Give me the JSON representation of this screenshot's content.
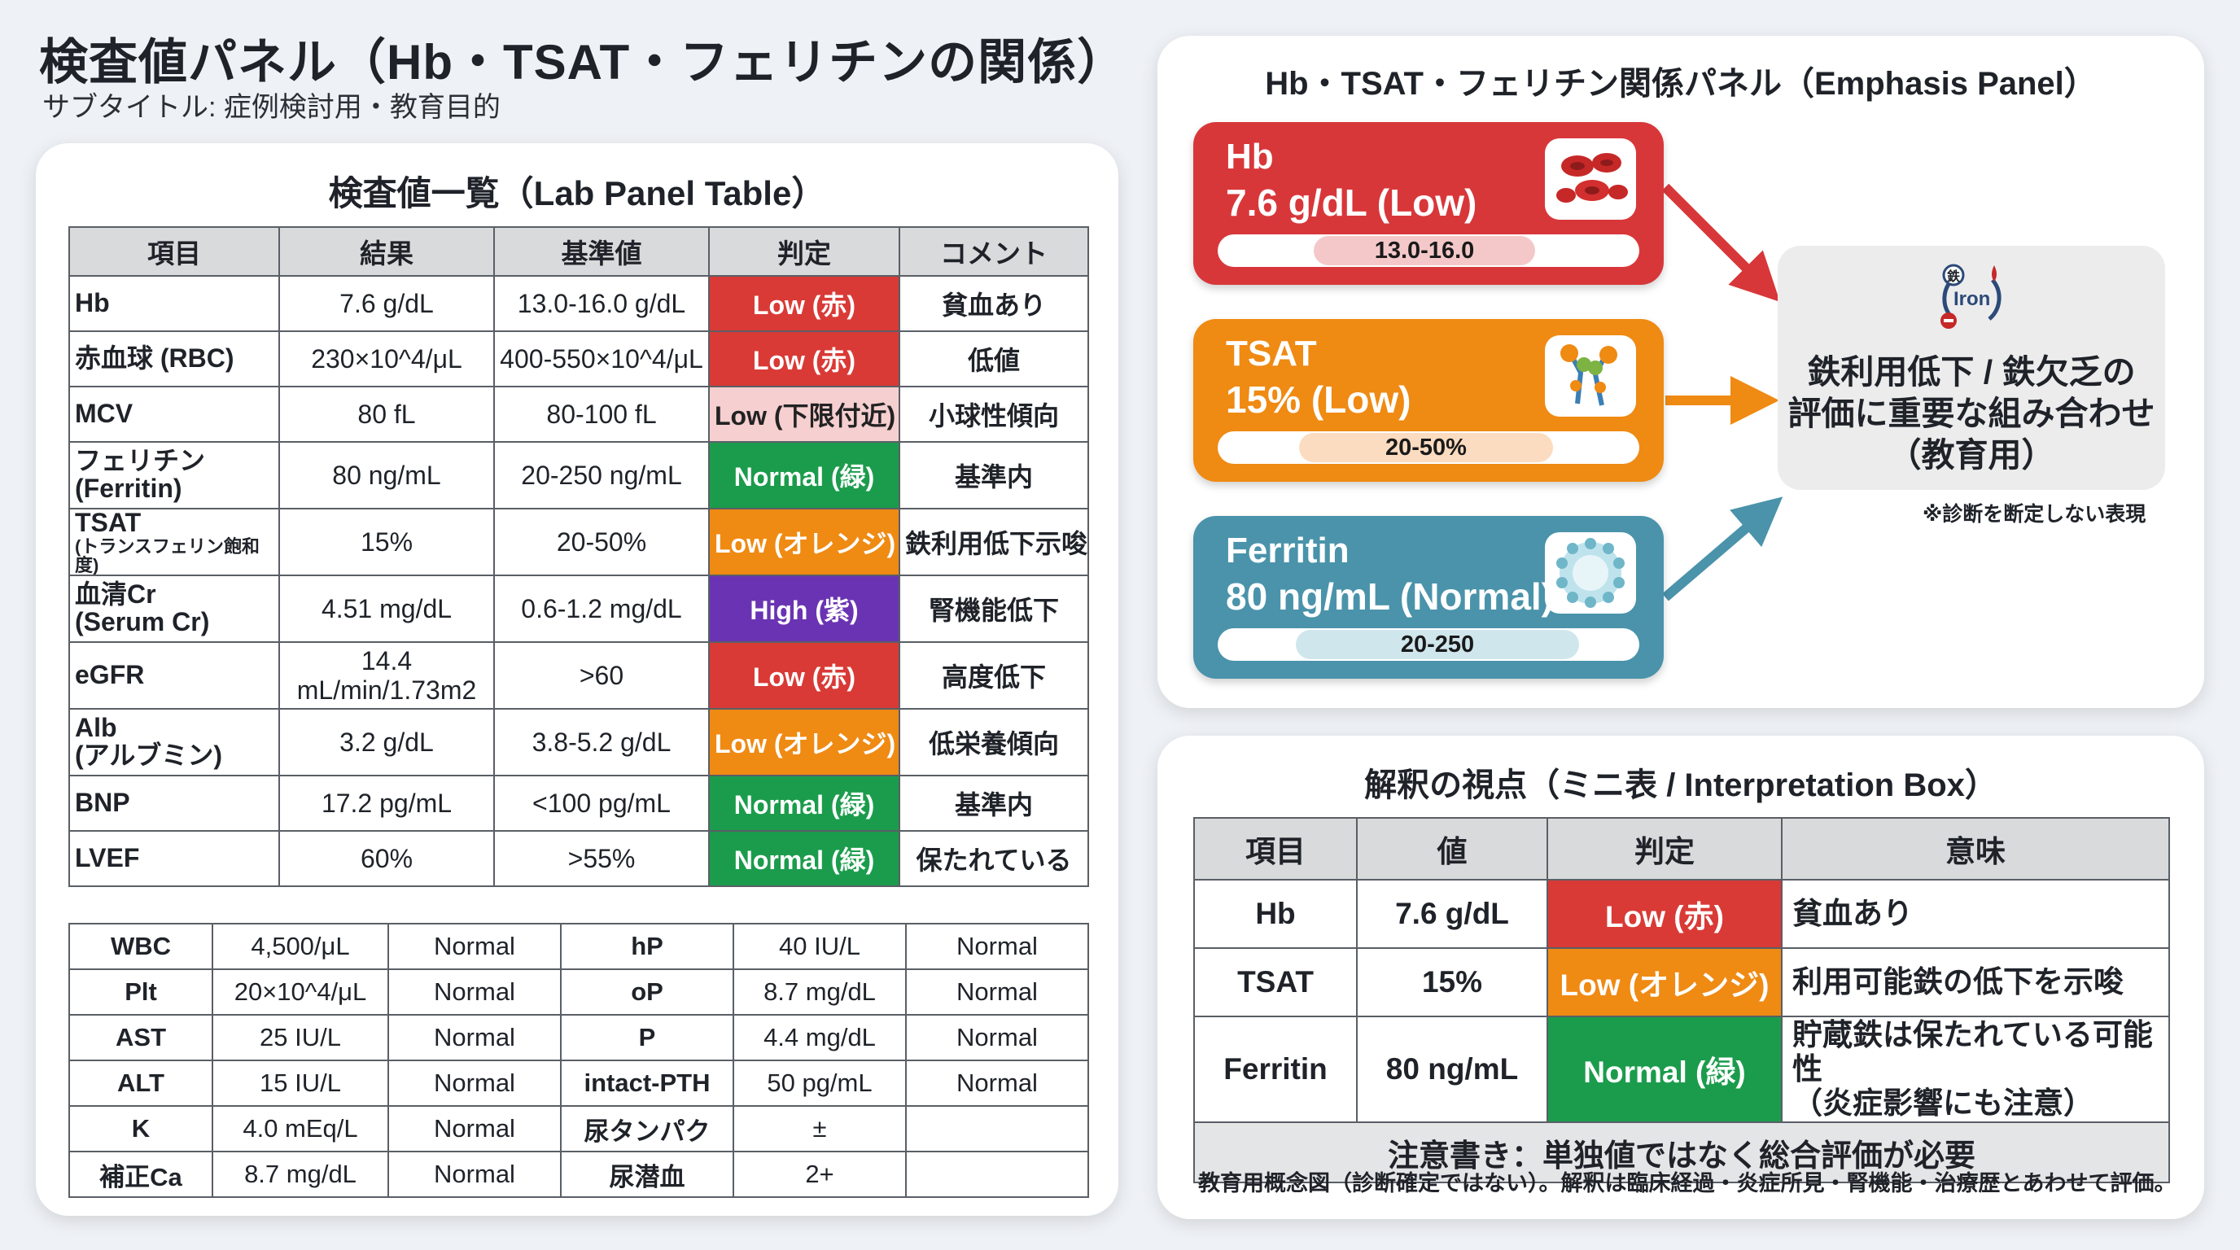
{
  "header": {
    "title": "検査値パネル（Hb・TSAT・フェリチンの関係）",
    "subtitle": "サブタイトル: 症例検討用・教育目的"
  },
  "lab_panel": {
    "title": "検査値一覧（Lab Panel Table）",
    "columns": [
      "項目",
      "結果",
      "基準値",
      "判定",
      "コメント"
    ],
    "rows": [
      {
        "item": "Hb",
        "item_sub": "",
        "result": "7.6 g/dL",
        "ref": "13.0-16.0 g/dL",
        "judgement": "Low (赤)",
        "color": "red",
        "comment": "貧血あり"
      },
      {
        "item": "赤血球 (RBC)",
        "item_sub": "",
        "result": "230×10^4/μL",
        "ref": "400-550×10^4/μL",
        "judgement": "Low (赤)",
        "color": "red",
        "comment": "低値"
      },
      {
        "item": "MCV",
        "item_sub": "",
        "result": "80 fL",
        "ref": "80-100 fL",
        "judgement": "Low (下限付近)",
        "color": "pink",
        "comment": "小球性傾向"
      },
      {
        "item": "フェリチン",
        "item_sub": "(Ferritin)",
        "result": "80 ng/mL",
        "ref": "20-250 ng/mL",
        "judgement": "Normal (緑)",
        "color": "green",
        "comment": "基準内"
      },
      {
        "item": "TSAT",
        "item_sub": "(トランスフェリン飽和度)",
        "result": "15%",
        "ref": "20-50%",
        "judgement": "Low (オレンジ)",
        "color": "orange",
        "comment": "鉄利用低下示唆"
      },
      {
        "item": "血清Cr",
        "item_sub": "(Serum Cr)",
        "result": "4.51 mg/dL",
        "ref": "0.6-1.2 mg/dL",
        "judgement": "High (紫)",
        "color": "purple",
        "comment": "腎機能低下"
      },
      {
        "item": "eGFR",
        "item_sub": "",
        "result": "14.4 mL/min/1.73m2",
        "ref": ">60",
        "judgement": "Low (赤)",
        "color": "red",
        "comment": "高度低下"
      },
      {
        "item": "Alb",
        "item_sub": "(アルブミン)",
        "result": "3.2 g/dL",
        "ref": "3.8-5.2 g/dL",
        "judgement": "Low (オレンジ)",
        "color": "orange",
        "comment": "低栄養傾向"
      },
      {
        "item": "BNP",
        "item_sub": "",
        "result": "17.2 pg/mL",
        "ref": "<100 pg/mL",
        "judgement": "Normal (緑)",
        "color": "green",
        "comment": "基準内"
      },
      {
        "item": "LVEF",
        "item_sub": "",
        "result": "60%",
        "ref": ">55%",
        "judgement": "Normal (緑)",
        "color": "green",
        "comment": "保たれている"
      }
    ],
    "misc_rows": [
      {
        "l1": "WBC",
        "v1": "4,500/μL",
        "s1": "Normal",
        "l2": "hP",
        "v2": "40 IU/L",
        "s2": "Normal"
      },
      {
        "l1": "Plt",
        "v1": "20×10^4/μL",
        "s1": "Normal",
        "l2": "oP",
        "v2": "8.7 mg/dL",
        "s2": "Normal"
      },
      {
        "l1": "AST",
        "v1": "25 IU/L",
        "s1": "Normal",
        "l2": "P",
        "v2": "4.4 mg/dL",
        "s2": "Normal"
      },
      {
        "l1": "ALT",
        "v1": "15 IU/L",
        "s1": "Normal",
        "l2": "intact-PTH",
        "v2": "50 pg/mL",
        "s2": "Normal"
      },
      {
        "l1": "K",
        "v1": "4.0 mEq/L",
        "s1": "Normal",
        "l2": "尿タンパク",
        "v2": "±",
        "s2": ""
      },
      {
        "l1": "補正Ca",
        "v1": "8.7 mg/dL",
        "s1": "Normal",
        "l2": "尿潜血",
        "v2": "2+",
        "s2": ""
      }
    ]
  },
  "emphasis_panel": {
    "title": "Hb・TSAT・フェリチン関係パネル（Emphasis Panel）",
    "boxes": [
      {
        "name": "Hb",
        "value": "7.6 g/dL (Low)",
        "range": "13.0-16.0",
        "color": "#d8373a",
        "pill_color": "#f4c8c9",
        "icon": "red-blood-cells-icon"
      },
      {
        "name": "TSAT",
        "value": "15% (Low)",
        "range": "20-50%",
        "color": "#ef8a13",
        "pill_color": "#fbdcc0",
        "icon": "transferrin-receptor-icon"
      },
      {
        "name": "Ferritin",
        "value": "80 ng/mL (Normal)",
        "range": "20-250",
        "color": "#4a93ab",
        "pill_color": "#cfe6ec",
        "icon": "ferritin-molecule-icon"
      }
    ],
    "summary_icon_label": "Iron",
    "summary_icon_badge": "鉄",
    "summary_line1": "鉄利用低下 / 鉄欠乏の",
    "summary_line2": "評価に重要な組み合わせ",
    "summary_line3": "（教育用）",
    "note": "※診断を断定しない表現"
  },
  "interpretation": {
    "title": "解釈の視点（ミニ表 / Interpretation Box）",
    "columns": [
      "項目",
      "値",
      "判定",
      "意味"
    ],
    "rows": [
      {
        "item": "Hb",
        "value": "7.6 g/dL",
        "judgement": "Low (赤)",
        "color": "red",
        "meaning": "貧血あり",
        "meaning2": ""
      },
      {
        "item": "TSAT",
        "value": "15%",
        "judgement": "Low (オレンジ)",
        "color": "orange",
        "meaning": "利用可能鉄の低下を示唆",
        "meaning2": ""
      },
      {
        "item": "Ferritin",
        "value": "80 ng/mL",
        "judgement": "Normal (緑)",
        "color": "green",
        "meaning": "貯蔵鉄は保たれている可能性",
        "meaning2": "（炎症影響にも注意）"
      }
    ],
    "caution": "注意書き：単独値ではなく総合評価が必要",
    "footnote": "教育用概念図（診断確定ではない）。解釈は臨床経過・炎症所見・腎機能・治療歴とあわせて評価。"
  }
}
